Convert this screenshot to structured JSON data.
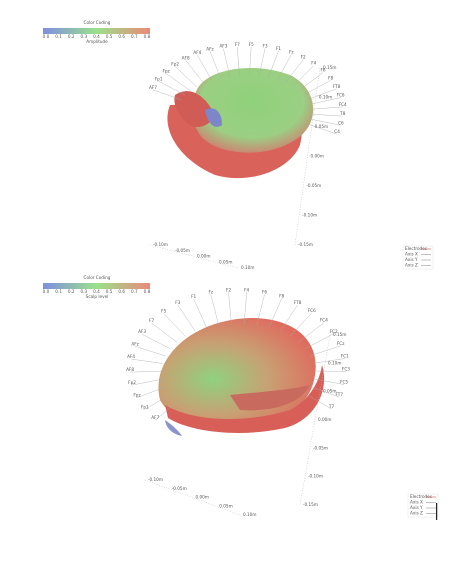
{
  "panels": [
    {
      "colorbar": {
        "title": "Color Coding",
        "ticks": [
          "0.0",
          "0.1",
          "0.2",
          "0.3",
          "0.4",
          "0.5",
          "0.6",
          "0.7",
          "0.8"
        ],
        "label": "Amplitude"
      },
      "electrodes": [
        "AF7",
        "Fp1",
        "Fpz",
        "Fp2",
        "AF8",
        "AF4",
        "AFz",
        "AF3",
        "F7",
        "F5",
        "F3",
        "F1",
        "Fz",
        "F2",
        "F4",
        "F6",
        "F8",
        "FT8",
        "FC6",
        "FC4",
        "T8",
        "C6",
        "C4"
      ],
      "right_axis": [
        "0.15m",
        "0.10m",
        "0.05m",
        "0.00m",
        "-0.05m",
        "-0.10m",
        "-0.15m"
      ],
      "bottom_axis": [
        "-0.10m",
        "-0.05m",
        "0.00m",
        "0.05m",
        "0.10m"
      ],
      "legend": [
        "Electrodes",
        "Axis X",
        "Axis Y",
        "Axis Z"
      ]
    },
    {
      "colorbar": {
        "title": "Color Coding",
        "ticks": [
          "0.0",
          "0.1",
          "0.2",
          "0.3",
          "0.4",
          "0.5",
          "0.6",
          "0.7",
          "0.8"
        ],
        "label": "Scalp level"
      },
      "electrodes": [
        "AF7",
        "Fp1",
        "Fpz",
        "Fp2",
        "AF8",
        "AF4",
        "AFz",
        "AF3",
        "F7",
        "F5",
        "F3",
        "F1",
        "Fz",
        "F2",
        "F4",
        "F6",
        "F8",
        "FT8",
        "FC6",
        "FC4",
        "FC2",
        "FCz",
        "FC1",
        "FC3",
        "FC5",
        "FT7",
        "T7"
      ],
      "right_axis": [
        "0.15m",
        "0.10m",
        "0.05m",
        "0.00m",
        "-0.05m",
        "-0.10m",
        "-0.15m"
      ],
      "bottom_axis": [
        "-0.10m",
        "-0.05m",
        "0.00m",
        "0.05m",
        "0.10m"
      ],
      "legend": [
        "Electrodes",
        "Axis X",
        "Axis Y",
        "Axis Z"
      ]
    }
  ]
}
